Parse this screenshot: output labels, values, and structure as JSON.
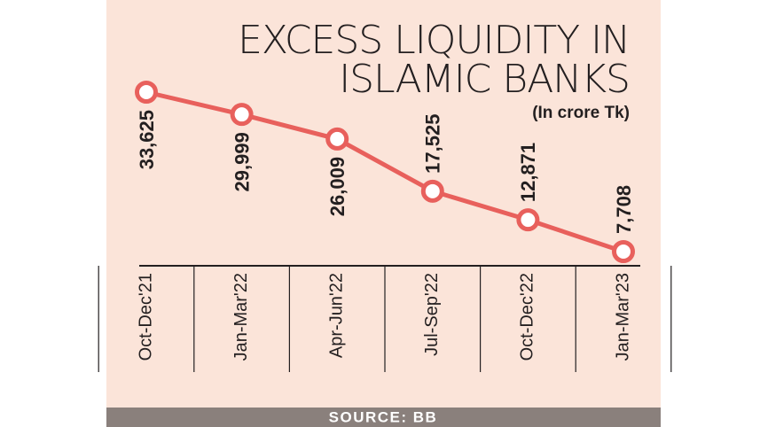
{
  "chart_data": {
    "type": "line",
    "title": [
      "EXCESS LIQUIDITY IN",
      "ISLAMIC BANKS"
    ],
    "subtitle": "(In crore Tk)",
    "source": "SOURCE: BB",
    "categories": [
      "Oct-Dec'21",
      "Jan-Mar'22",
      "Apr-Jun'22",
      "Jul-Sep'22",
      "Oct-Dec'22",
      "Jan-Mar'23"
    ],
    "values": [
      33625,
      29999,
      26009,
      17525,
      12871,
      7708
    ],
    "value_labels": [
      "33,625",
      "29,999",
      "26,009",
      "17,525",
      "12,871",
      "7,708"
    ],
    "color": "#e8605c"
  }
}
